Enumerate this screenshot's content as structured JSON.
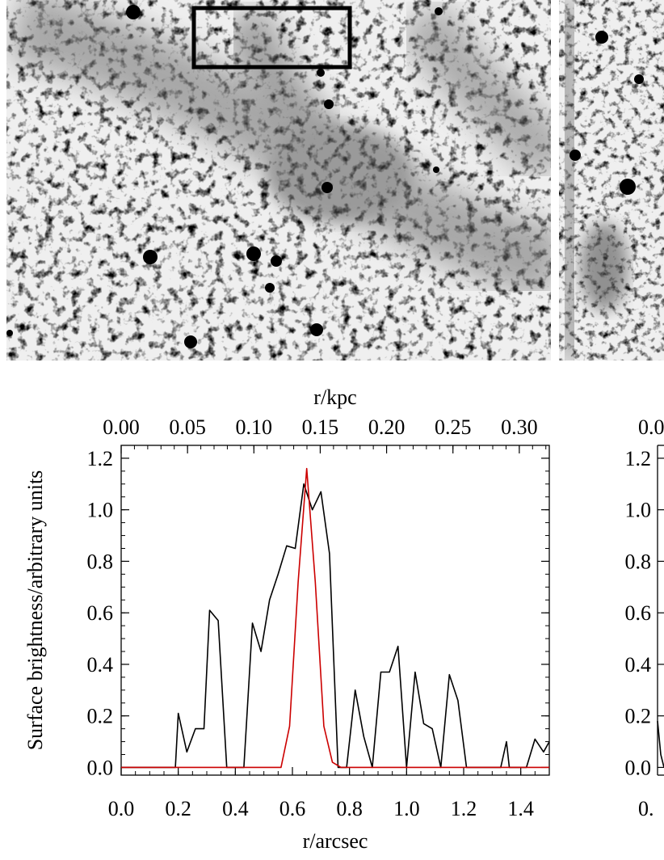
{
  "figure": {
    "image_panels": [
      {
        "name": "left-image",
        "description": "grey-scale sky image with stellar sources and diffuse arc, box marker near top"
      },
      {
        "name": "right-image-partial",
        "description": "cropped second image panel"
      }
    ]
  },
  "chart_data": [
    {
      "type": "line",
      "title": "",
      "xlabel": "r/arcsec",
      "x2label": "r/kpc",
      "ylabel": "Surface brightness/arbitrary units",
      "xlim": [
        0.0,
        1.5
      ],
      "ylim": [
        -0.03,
        1.25
      ],
      "x2lim": [
        0.0,
        0.3226
      ],
      "grid": false,
      "x_ticks": [
        "0.0",
        "0.2",
        "0.4",
        "0.6",
        "0.8",
        "1.0",
        "1.2",
        "1.4"
      ],
      "x_tick_values": [
        0.0,
        0.2,
        0.4,
        0.6,
        0.8,
        1.0,
        1.2,
        1.4
      ],
      "y_ticks": [
        "0.0",
        "0.2",
        "0.4",
        "0.6",
        "0.8",
        "1.0",
        "1.2"
      ],
      "y_tick_values": [
        0.0,
        0.2,
        0.4,
        0.6,
        0.8,
        1.0,
        1.2
      ],
      "x2_ticks": [
        "0.00",
        "0.05",
        "0.10",
        "0.15",
        "0.20",
        "0.25",
        "0.30"
      ],
      "x2_tick_values": [
        0.0,
        0.05,
        0.1,
        0.15,
        0.2,
        0.25,
        0.3
      ],
      "series": [
        {
          "color": "#000000",
          "x": [
            0.0,
            0.19,
            0.2,
            0.23,
            0.26,
            0.29,
            0.31,
            0.34,
            0.37,
            0.4,
            0.43,
            0.46,
            0.49,
            0.52,
            0.55,
            0.58,
            0.61,
            0.64,
            0.67,
            0.7,
            0.73,
            0.76,
            0.79,
            0.82,
            0.85,
            0.88,
            0.91,
            0.94,
            0.97,
            1.0,
            1.03,
            1.06,
            1.09,
            1.12,
            1.15,
            1.18,
            1.21,
            1.24,
            1.27,
            1.3,
            1.33,
            1.35,
            1.36,
            1.39,
            1.42,
            1.45,
            1.48,
            1.5
          ],
          "y": [
            0.0,
            0.0,
            0.21,
            0.06,
            0.15,
            0.15,
            0.61,
            0.57,
            0.0,
            0.0,
            0.0,
            0.56,
            0.45,
            0.65,
            0.75,
            0.86,
            0.85,
            1.1,
            1.0,
            1.07,
            0.83,
            0.0,
            0.0,
            0.3,
            0.12,
            0.0,
            0.37,
            0.37,
            0.47,
            0.0,
            0.37,
            0.17,
            0.15,
            0.0,
            0.36,
            0.26,
            0.0,
            0.0,
            0.0,
            0.0,
            0.0,
            0.1,
            0.0,
            0.0,
            0.0,
            0.11,
            0.06,
            0.1
          ]
        },
        {
          "color": "#cc0000",
          "x": [
            0.0,
            0.56,
            0.59,
            0.62,
            0.65,
            0.68,
            0.71,
            0.74,
            0.77,
            1.5
          ],
          "y": [
            0.0,
            0.0,
            0.16,
            0.72,
            1.16,
            0.72,
            0.16,
            0.02,
            0.0,
            0.0
          ]
        }
      ]
    },
    {
      "type": "line",
      "partial": true,
      "title": "",
      "xlabel": "",
      "ylabel": "",
      "y_ticks": [
        "0.0",
        "0.2",
        "0.4",
        "0.6",
        "0.8",
        "1.0",
        "1.2"
      ],
      "y_tick_values": [
        0.0,
        0.2,
        0.4,
        0.6,
        0.8,
        1.0,
        1.2
      ],
      "x_ticks_visible_fragment": "0.",
      "x2_ticks_visible_fragment": "0.0",
      "ylim": [
        -0.03,
        1.25
      ],
      "series": [
        {
          "color": "#000000",
          "x": [
            0.0,
            0.02,
            0.04
          ],
          "y": [
            0.18,
            0.05,
            0.0
          ]
        }
      ]
    }
  ]
}
